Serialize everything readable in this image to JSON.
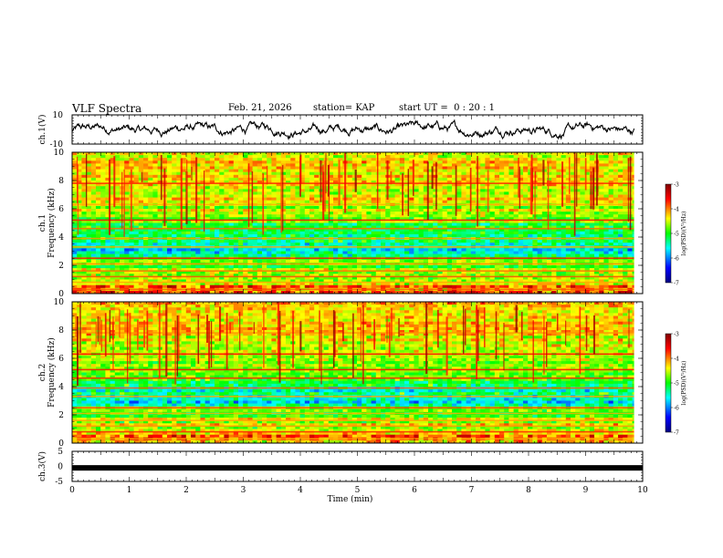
{
  "header": {
    "title": "VLF Spectra",
    "date": "Feb. 21, 2026",
    "station": "station= KAP",
    "start": "start UT =  0 : 20 : 1"
  },
  "chart_data": [
    {
      "type": "line",
      "name": "ch1-waveform",
      "ylabel": "ch.1(V)",
      "ylim": [
        -10,
        10
      ],
      "yticks": [
        "10",
        "-10"
      ],
      "xlim": [
        0,
        10
      ],
      "trace_range_min": [
        0,
        9.85
      ],
      "color": "#000000"
    },
    {
      "type": "heatmap",
      "name": "ch1-spectrogram",
      "ylabel": "ch.1\nFrequency (kHz)",
      "ylim": [
        0,
        10
      ],
      "yticks": [
        "0",
        "2",
        "4",
        "6",
        "8",
        "10"
      ],
      "xlim": [
        0,
        10
      ],
      "data_end_min": 9.85,
      "colorbar": {
        "label": "log(PSD)(V²/Hz)",
        "range": [
          -7,
          -3
        ],
        "ticks": [
          "-3",
          "-4",
          "-5",
          "-6",
          "-7"
        ]
      }
    },
    {
      "type": "heatmap",
      "name": "ch2-spectrogram",
      "ylabel": "ch.2\nFrequency (kHz)",
      "ylim": [
        0,
        10
      ],
      "yticks": [
        "0",
        "2",
        "4",
        "6",
        "8",
        "10"
      ],
      "xlim": [
        0,
        10
      ],
      "data_end_min": 9.85,
      "colorbar": {
        "label": "log(PSD)(V²/Hz)",
        "range": [
          -7,
          -3
        ],
        "ticks": [
          "-3",
          "-4",
          "-5",
          "-6",
          "-7"
        ]
      }
    },
    {
      "type": "line",
      "name": "ch3-waveform",
      "ylabel": "ch.3(V)",
      "ylim": [
        -5,
        5
      ],
      "yticks": [
        "5",
        "0",
        "-5"
      ],
      "xlim": [
        0,
        10
      ],
      "constant_value": -0.5,
      "color": "#000000"
    }
  ],
  "xaxis": {
    "label": "Time (min)",
    "ticks": [
      "0",
      "1",
      "2",
      "3",
      "4",
      "5",
      "6",
      "7",
      "8",
      "9",
      "10"
    ]
  },
  "colors": {
    "scale": [
      "#000080",
      "#0000ff",
      "#00ffff",
      "#00ff00",
      "#ffff00",
      "#ff0000",
      "#800000"
    ]
  }
}
